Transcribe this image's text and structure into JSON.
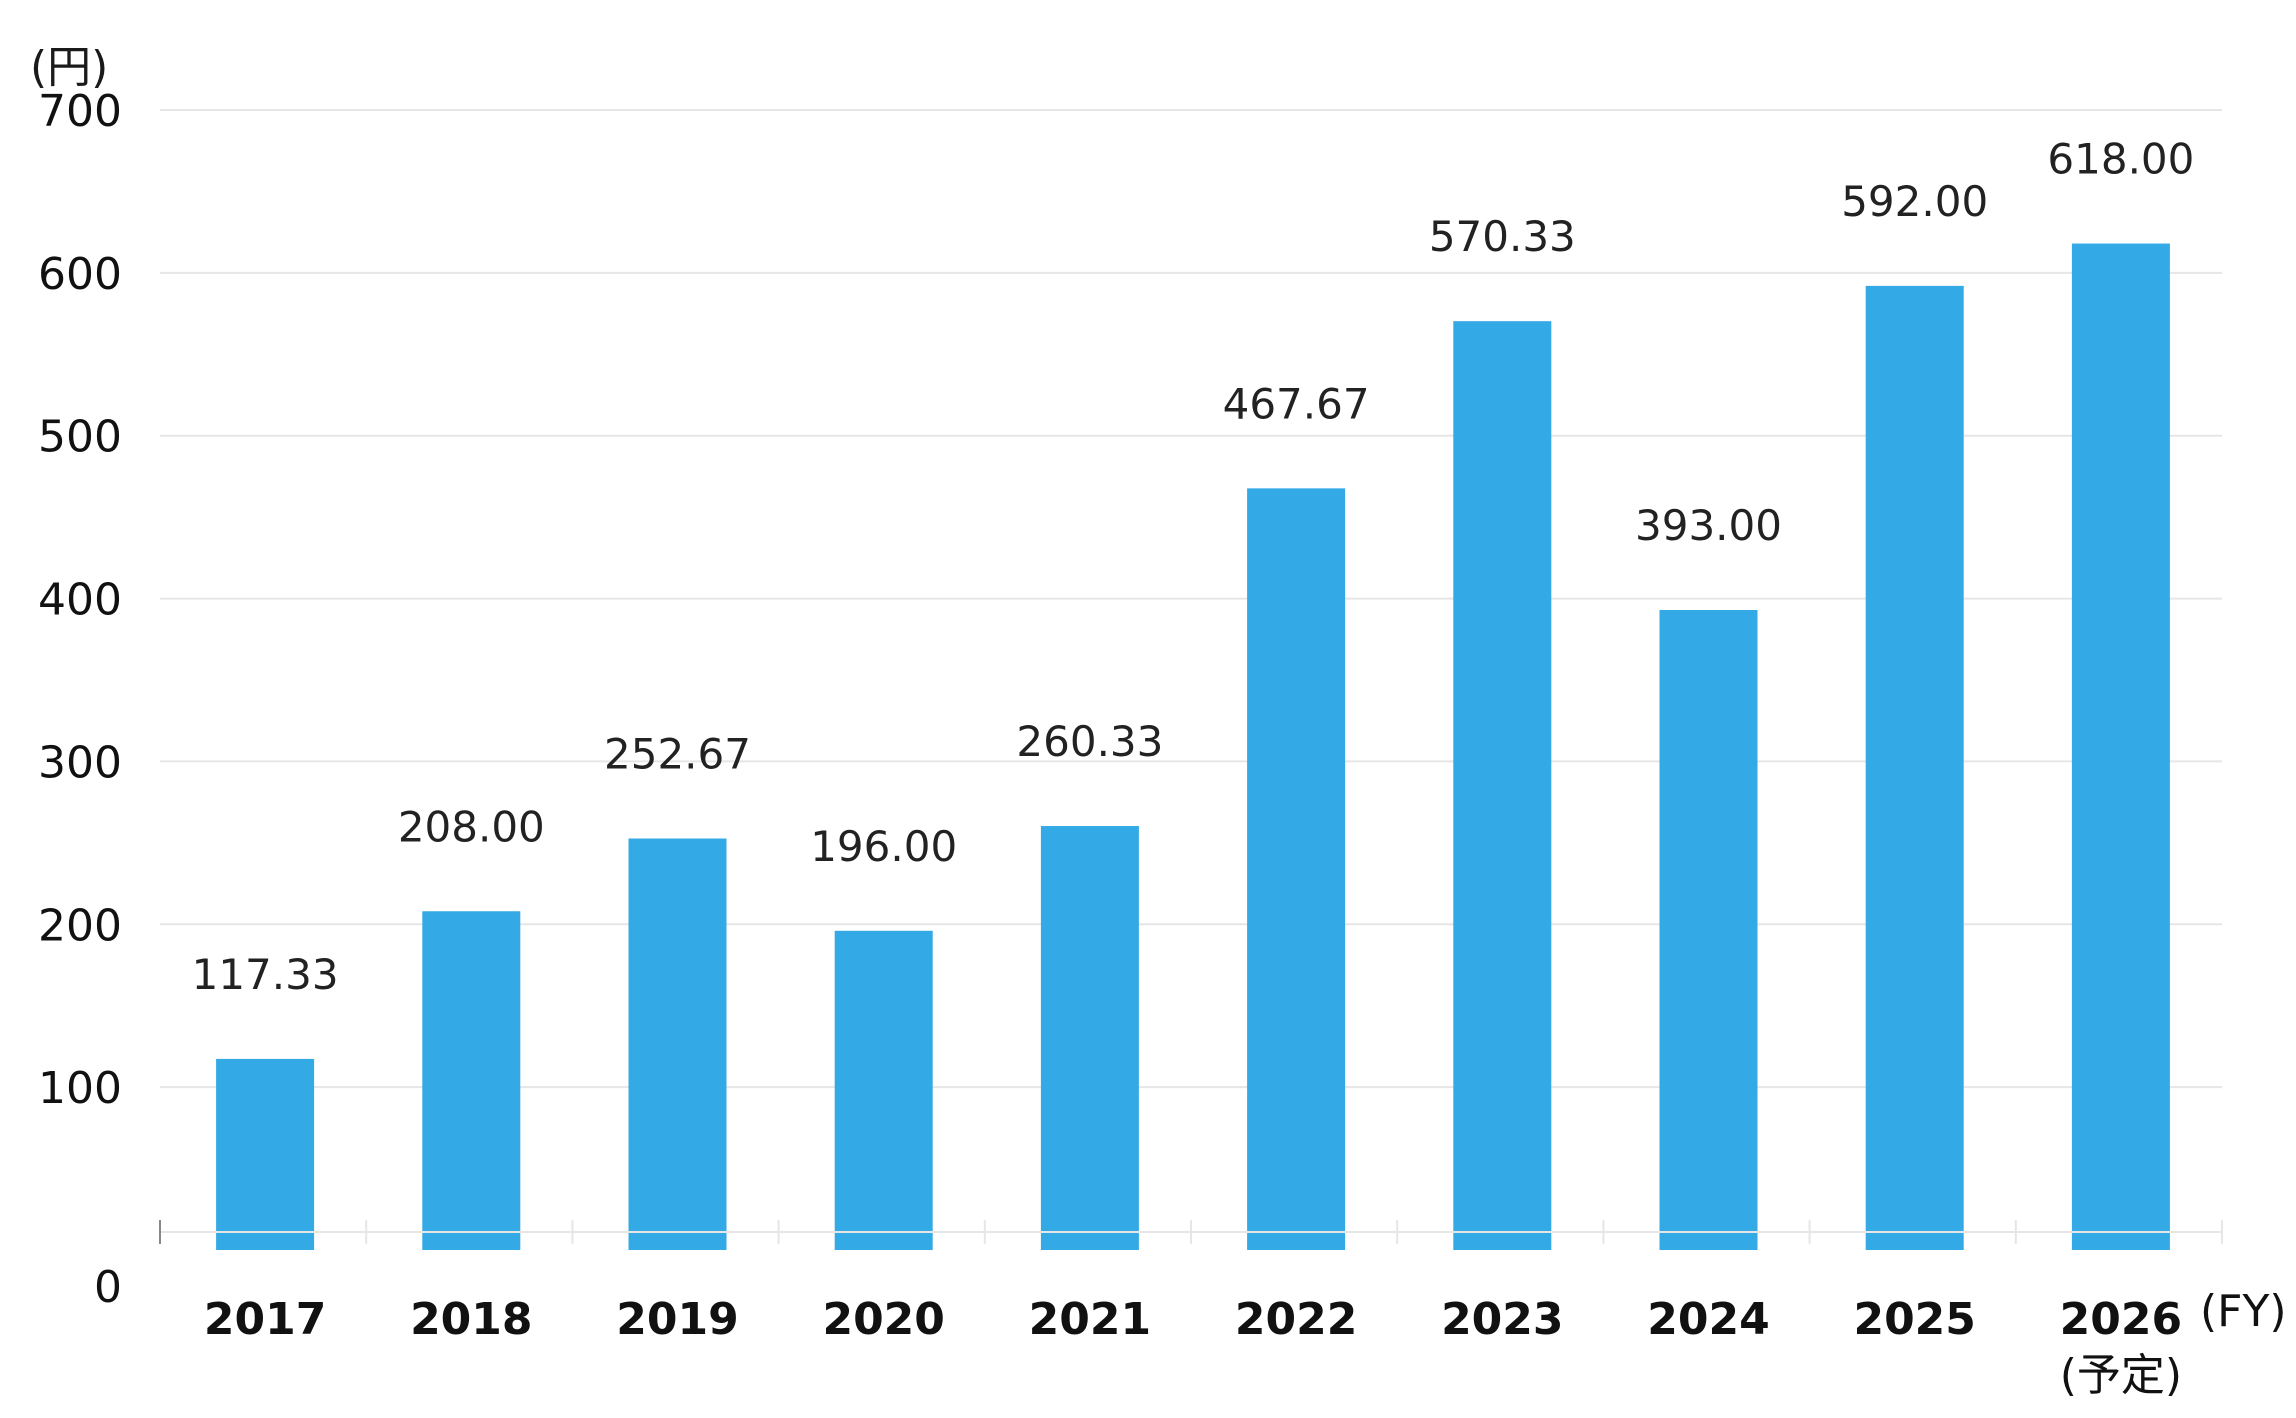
{
  "chart_data": {
    "type": "bar",
    "y_unit_label": "(円)",
    "x_unit_label": "(FY)",
    "categories": [
      "2017",
      "2018",
      "2019",
      "2020",
      "2021",
      "2022",
      "2023",
      "2024",
      "2025",
      "2026"
    ],
    "category_notes": [
      "",
      "",
      "",
      "",
      "",
      "",
      "",
      "",
      "",
      "(予定)"
    ],
    "values": [
      117.33,
      208.0,
      252.67,
      196.0,
      260.33,
      467.67,
      570.33,
      393.0,
      592.0,
      618.0
    ],
    "data_labels": [
      "117.33",
      "208.00",
      "252.67",
      "196.00",
      "260.33",
      "467.67",
      "570.33",
      "393.00",
      "592.00",
      "618.00"
    ],
    "y_ticks": [
      0,
      100,
      200,
      300,
      400,
      500,
      600,
      700
    ],
    "ylim": [
      0,
      700
    ],
    "grid": true,
    "legend": "none",
    "colors": {
      "bar": "#33a9e5",
      "grid": "#e6e6e6",
      "axis": "#bbbbbb"
    }
  }
}
